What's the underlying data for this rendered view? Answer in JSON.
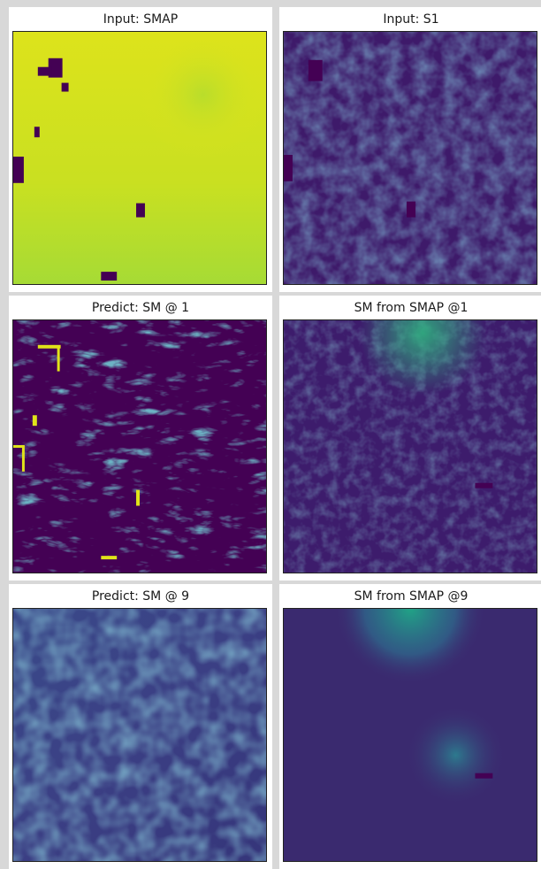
{
  "panels": [
    {
      "title": "Input: SMAP",
      "key": "input-smap"
    },
    {
      "title": "Input: S1",
      "key": "input-s1"
    },
    {
      "title": "Predict: SM @ 1",
      "key": "predict-sm-1"
    },
    {
      "title": "SM from SMAP @1",
      "key": "sm-from-smap-1"
    },
    {
      "title": "Predict: SM @ 9",
      "key": "predict-sm-9"
    },
    {
      "title": "SM from SMAP @9",
      "key": "sm-from-smap-9"
    }
  ],
  "colors": {
    "viridis_dark": "#440154",
    "viridis_purple": "#3b1f6e",
    "viridis_blue": "#2f4b8a",
    "viridis_teal": "#2a7f8e",
    "viridis_green": "#3bb17a",
    "viridis_yellow": "#d7e219"
  }
}
